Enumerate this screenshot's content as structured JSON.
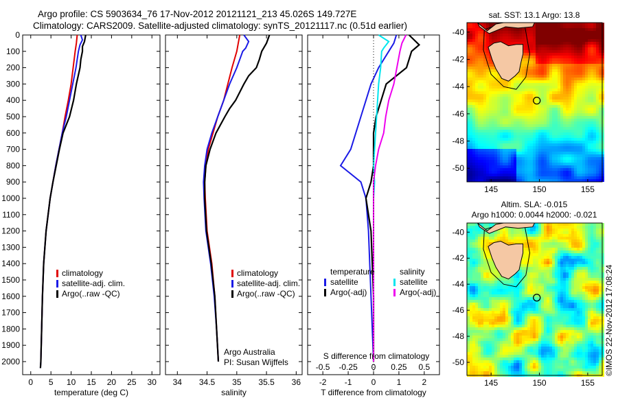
{
  "header": {
    "line1": "Argo profile: CS 5903634_76 17-Nov-2012 20121121_213 45.026S 149.727E",
    "line2": "Climatology: CARS2009. Satellite-adjusted climatology: synTS_20121117.nc (0.51d earlier)"
  },
  "colors": {
    "climatology": "#e00000",
    "satellite": "#1a1ae6",
    "argo": "#000000",
    "sal_satellite": "#00e5ee",
    "sal_argo": "#ee00ee"
  },
  "chart_data": [
    {
      "type": "line",
      "name": "temperature-profile",
      "xlabel": "temperature (deg C)",
      "ylabel": "",
      "xlim": [
        -2,
        32
      ],
      "ylim": [
        2080,
        0
      ],
      "xticks": [
        "0",
        "5",
        "10",
        "15",
        "20",
        "25",
        "30"
      ],
      "yticks": [
        "0",
        "100",
        "200",
        "300",
        "400",
        "500",
        "600",
        "700",
        "800",
        "900",
        "1000",
        "1100",
        "1200",
        "1300",
        "1400",
        "1500",
        "1600",
        "1700",
        "1800",
        "1900",
        "2000"
      ],
      "legend": [
        "climatology",
        "satellite-adj. clim.",
        "Argo(..raw -QC)"
      ],
      "series": [
        {
          "name": "climatology",
          "color": "#e00000",
          "depth": [
            0,
            50,
            100,
            200,
            300,
            400,
            500,
            600,
            700,
            800,
            900,
            1000,
            1200,
            1400,
            1600,
            1800,
            2000
          ],
          "values": [
            11.5,
            11.3,
            11.0,
            10.5,
            10.0,
            9.3,
            8.5,
            7.8,
            7.0,
            6.2,
            5.5,
            4.8,
            3.8,
            3.2,
            2.9,
            2.7,
            2.5
          ]
        },
        {
          "name": "satellite-adj. clim.",
          "color": "#1a1ae6",
          "depth": [
            0,
            30,
            60,
            100,
            200,
            300,
            400,
            500,
            600,
            700,
            800,
            900,
            1000,
            1200,
            1400,
            1600,
            1800,
            2000,
            2040
          ],
          "values": [
            12.4,
            12.8,
            12.2,
            11.8,
            11.2,
            10.4,
            9.6,
            8.8,
            7.8,
            7.0,
            6.2,
            5.5,
            4.8,
            3.8,
            3.2,
            2.9,
            2.7,
            2.5,
            2.4
          ]
        },
        {
          "name": "Argo(..raw -QC)",
          "color": "#000000",
          "depth": [
            0,
            40,
            70,
            100,
            150,
            200,
            300,
            400,
            500,
            600,
            700,
            800,
            900,
            1000,
            1200,
            1400,
            1600,
            1800,
            2000,
            2040
          ],
          "values": [
            13.6,
            13.3,
            12.8,
            12.8,
            12.4,
            12.2,
            11.3,
            10.6,
            9.6,
            8.0,
            7.1,
            6.3,
            5.5,
            4.8,
            3.8,
            3.2,
            2.9,
            2.7,
            2.5,
            2.4
          ]
        }
      ]
    },
    {
      "type": "line",
      "name": "salinity-profile",
      "xlabel": "salinity",
      "xlim": [
        33.8,
        36.1
      ],
      "ylim": [
        2080,
        0
      ],
      "xticks": [
        "34",
        "34.5",
        "35",
        "35.5",
        "36"
      ],
      "legend": [
        "climatology",
        "satellite-adj. clim.",
        "Argo(..raw -QC)"
      ],
      "annotation": [
        "Argo Australia",
        "PI: Susan Wijffels"
      ],
      "series": [
        {
          "name": "climatology",
          "color": "#e00000",
          "depth": [
            0,
            100,
            200,
            300,
            400,
            500,
            600,
            700,
            800,
            900,
            1000,
            1200,
            1400,
            1600,
            1800,
            2000
          ],
          "values": [
            35.05,
            35.0,
            34.92,
            34.85,
            34.78,
            34.68,
            34.6,
            34.52,
            34.48,
            34.46,
            34.47,
            34.5,
            34.58,
            34.63,
            34.66,
            34.69
          ]
        },
        {
          "name": "satellite-adj. clim.",
          "color": "#1a1ae6",
          "depth": [
            0,
            40,
            80,
            100,
            150,
            200,
            300,
            400,
            500,
            600,
            700,
            800,
            900,
            1000,
            1200,
            1400,
            1600,
            1800,
            2000
          ],
          "values": [
            35.12,
            35.2,
            35.15,
            35.1,
            35.05,
            35.0,
            34.88,
            34.78,
            34.68,
            34.58,
            34.5,
            34.46,
            34.44,
            34.45,
            34.48,
            34.56,
            34.62,
            34.66,
            34.69
          ]
        },
        {
          "name": "Argo(..raw -QC)",
          "color": "#000000",
          "depth": [
            0,
            50,
            100,
            150,
            200,
            250,
            300,
            400,
            450,
            500,
            600,
            700,
            800,
            900,
            1000,
            1200,
            1400,
            1600,
            1800,
            2000
          ],
          "values": [
            35.55,
            35.5,
            35.42,
            35.38,
            35.33,
            35.2,
            35.12,
            34.98,
            34.88,
            34.8,
            34.65,
            34.55,
            34.48,
            34.46,
            34.46,
            34.49,
            34.57,
            34.63,
            34.66,
            34.69
          ]
        }
      ]
    },
    {
      "type": "line",
      "name": "difference-profile",
      "xlabel": "T difference from climatology",
      "xlabel2": "S difference from climatology",
      "xlim": [
        -2.6,
        2.6
      ],
      "ylim": [
        2080,
        0
      ],
      "xticks": [
        "-2",
        "-1",
        "0",
        "1",
        "2"
      ],
      "xticks2": [
        "-0.5",
        "-0.25",
        "0",
        "0.25",
        "0.5"
      ],
      "legend_temperature": [
        "temperature",
        "satellite",
        "Argo(-adj)"
      ],
      "legend_salinity": [
        "salinity",
        "satellite",
        "Argo(-adj)"
      ],
      "series": [
        {
          "name": "T satellite",
          "color": "#1a1ae6",
          "depth": [
            0,
            50,
            100,
            200,
            300,
            400,
            500,
            600,
            700,
            800,
            900,
            1000,
            1200,
            1400,
            1600,
            1800,
            2000
          ],
          "values": [
            0.9,
            0.8,
            0.6,
            0.2,
            -0.1,
            -0.3,
            -0.5,
            -0.7,
            -0.9,
            -1.3,
            -0.5,
            -0.3,
            -0.2,
            -0.15,
            -0.1,
            -0.05,
            0
          ]
        },
        {
          "name": "T Argo(-adj)",
          "color": "#000000",
          "depth": [
            0,
            60,
            100,
            200,
            300,
            400,
            500,
            600,
            700,
            800,
            900,
            1000,
            1200,
            1400,
            1600,
            1800,
            2000
          ],
          "values": [
            1.4,
            1.8,
            1.5,
            1.3,
            0.5,
            0.3,
            0.1,
            0.0,
            0.0,
            0.0,
            -0.1,
            -0.3,
            -0.1,
            -0.05,
            0,
            0,
            0
          ]
        },
        {
          "name": "S satellite",
          "color": "#00e5ee",
          "depth": [
            0,
            40,
            80,
            100,
            200,
            300,
            400,
            500,
            600,
            700,
            800,
            900,
            1000,
            1200,
            1400,
            1600,
            1800,
            2000
          ],
          "values": [
            0.05,
            0.15,
            0.1,
            0.08,
            0.07,
            0.05,
            0.04,
            0.03,
            0.02,
            0.01,
            0.0,
            0.01,
            0.0,
            0.0,
            0.0,
            0.0,
            0.0,
            0.0
          ]
        },
        {
          "name": "S Argo(-adj)",
          "color": "#ee00ee",
          "depth": [
            0,
            50,
            100,
            200,
            300,
            400,
            500,
            600,
            700,
            800,
            900,
            1000,
            1200,
            1400,
            1600,
            1800,
            2000
          ],
          "values": [
            0.32,
            0.28,
            0.26,
            0.23,
            0.2,
            0.15,
            0.12,
            0.1,
            0.05,
            0.02,
            0.0,
            0.0,
            0.0,
            0.0,
            0.0,
            0.0,
            0.0
          ]
        }
      ]
    },
    {
      "type": "heatmap",
      "name": "sst-map",
      "title": "sat. SST: 13.1  Argo: 13.8",
      "xticks": [
        "145",
        "150",
        "155"
      ],
      "yticks": [
        "-40",
        "-42",
        "-44",
        "-46",
        "-48",
        "-50"
      ],
      "xlim": [
        142.5,
        156.5
      ],
      "ylim": [
        -51,
        -39.3
      ],
      "marker": {
        "lon": 149.73,
        "lat": -45.03
      }
    },
    {
      "type": "heatmap",
      "name": "sla-map",
      "title": "Altim. SLA: -0.015",
      "subtitle": "Argo h1000: 0.0044 h2000: -0.021",
      "xticks": [
        "145",
        "150",
        "155"
      ],
      "yticks": [
        "-40",
        "-42",
        "-44",
        "-46",
        "-48",
        "-50"
      ],
      "xlim": [
        142.5,
        156.5
      ],
      "ylim": [
        -51,
        -39.3
      ],
      "marker": {
        "lon": 149.73,
        "lat": -45.03
      }
    }
  ],
  "footer": {
    "imos_stamp": "©IMOS 22-Nov-2012 17:08:24"
  }
}
